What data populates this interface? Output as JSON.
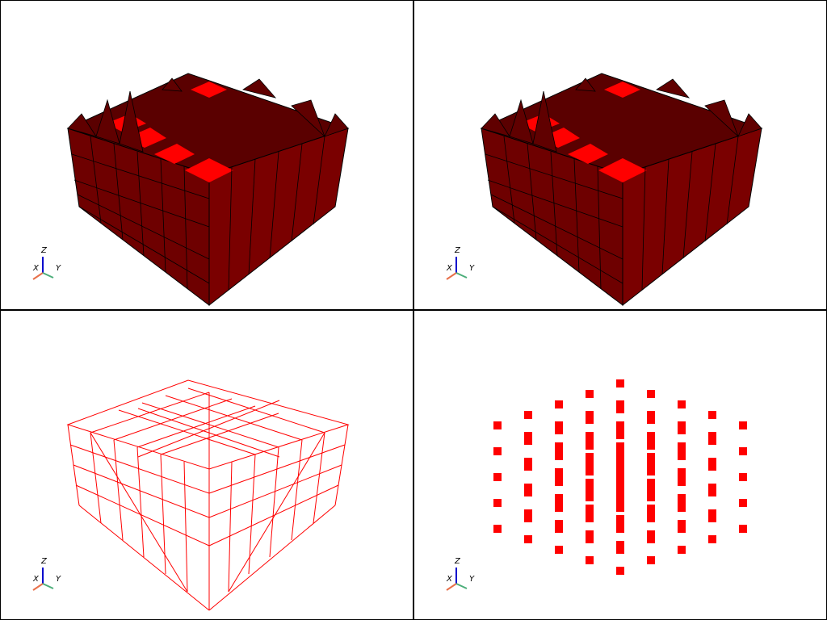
{
  "window": {
    "title": ""
  },
  "viewports": [
    {
      "id": "surface-edges",
      "mode": "surface-with-edges",
      "color": "#ff0000"
    },
    {
      "id": "surface-edges-2",
      "mode": "surface-with-edges",
      "color": "#ff0000"
    },
    {
      "id": "wireframe",
      "mode": "wireframe",
      "color": "#ff0000"
    },
    {
      "id": "points",
      "mode": "points",
      "color": "#ff0000"
    }
  ],
  "axes_widget": {
    "x_label": "X",
    "y_label": "Y",
    "z_label": "Z",
    "x_color": "#e8704a",
    "y_color": "#4cae7a",
    "z_color": "#0000cc"
  }
}
